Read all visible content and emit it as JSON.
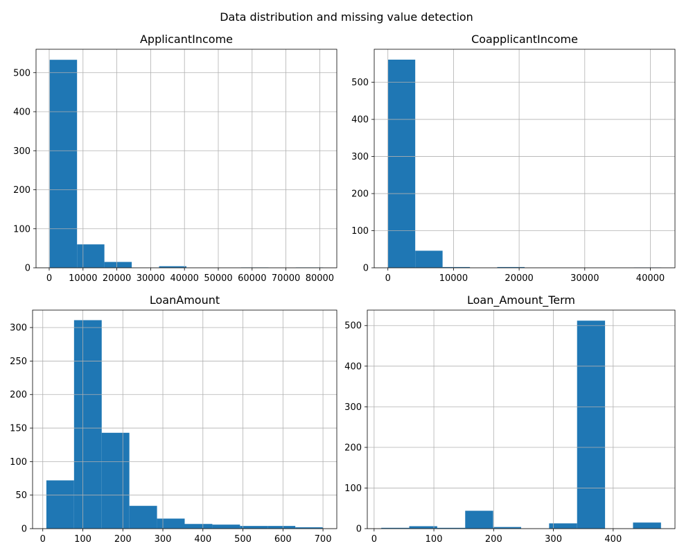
{
  "figure_title": "Data distribution and missing value detection",
  "colors": {
    "bar": "#1f77b4",
    "grid": "#b0b0b0",
    "axis": "#000000"
  },
  "chart_data": [
    {
      "type": "bar",
      "title": "ApplicantIncome",
      "bin_edges": [
        150,
        8235,
        16320,
        24405,
        32490,
        40575,
        48660,
        56745,
        64830,
        72915,
        81000
      ],
      "values": [
        533,
        60,
        15,
        0,
        4,
        0,
        0,
        1,
        0,
        1
      ],
      "xlim": [
        -3892,
        85042
      ],
      "ylim": [
        0,
        560
      ],
      "xticks": [
        0,
        10000,
        20000,
        30000,
        40000,
        50000,
        60000,
        70000,
        80000
      ],
      "yticks": [
        0,
        100,
        200,
        300,
        400,
        500
      ],
      "grid": true,
      "xlabel": "",
      "ylabel": ""
    },
    {
      "type": "bar",
      "title": "CoapplicantIncome",
      "bin_edges": [
        0,
        4167,
        8334,
        12501,
        16668,
        20835,
        25002,
        29169,
        33336,
        37503,
        41667
      ],
      "values": [
        561,
        46,
        2,
        0,
        2,
        0,
        0,
        0,
        0,
        1
      ],
      "xlim": [
        -2083,
        43750
      ],
      "ylim": [
        0,
        589
      ],
      "xticks": [
        0,
        10000,
        20000,
        30000,
        40000
      ],
      "yticks": [
        0,
        100,
        200,
        300,
        400,
        500
      ],
      "grid": true,
      "xlabel": "",
      "ylabel": ""
    },
    {
      "type": "bar",
      "title": "LoanAmount",
      "bin_edges": [
        9,
        78.1,
        147.2,
        216.3,
        285.4,
        354.5,
        423.6,
        492.7,
        561.8,
        630.9,
        700
      ],
      "values": [
        72,
        311,
        143,
        34,
        15,
        7,
        6,
        4,
        4,
        2
      ],
      "xlim": [
        -25.5,
        734.5
      ],
      "ylim": [
        0,
        326
      ],
      "xticks": [
        0,
        100,
        200,
        300,
        400,
        500,
        600,
        700
      ],
      "yticks": [
        0,
        50,
        100,
        150,
        200,
        250,
        300
      ],
      "grid": true,
      "xlabel": "",
      "ylabel": ""
    },
    {
      "type": "bar",
      "title": "Loan_Amount_Term",
      "bin_edges": [
        12,
        58.8,
        105.6,
        152.4,
        199.2,
        246,
        292.8,
        339.6,
        386.4,
        433.2,
        480
      ],
      "values": [
        2,
        6,
        2,
        44,
        4,
        0,
        13,
        512,
        0,
        15
      ],
      "xlim": [
        -11.4,
        503.4
      ],
      "ylim": [
        0,
        538
      ],
      "xticks": [
        0,
        100,
        200,
        300,
        400
      ],
      "yticks": [
        0,
        100,
        200,
        300,
        400,
        500
      ],
      "grid": true,
      "xlabel": "",
      "ylabel": ""
    }
  ]
}
